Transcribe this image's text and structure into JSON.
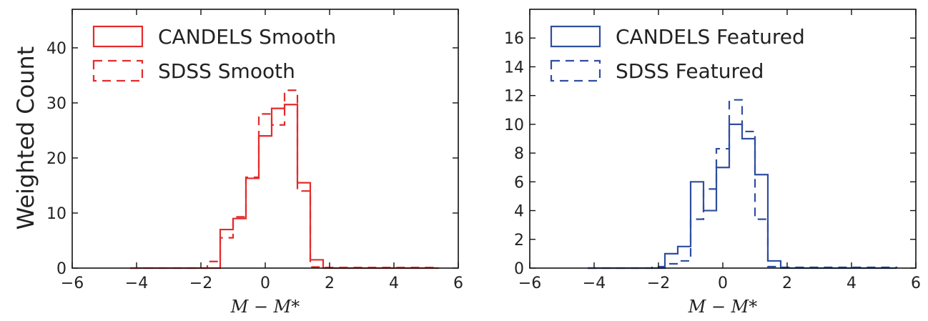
{
  "figure": {
    "ylabel": "Weighted Count"
  },
  "chart_data": [
    {
      "type": "histogram",
      "xlabel": "M − M*",
      "xlim": [
        -6,
        6
      ],
      "ylim": [
        0,
        47
      ],
      "x_ticks": [
        -6,
        -4,
        -2,
        0,
        2,
        4,
        6
      ],
      "y_ticks": [
        0,
        10,
        20,
        30,
        40
      ],
      "legend_position": "top-left",
      "bin_edges": [
        -4.2,
        -3.8,
        -3.4,
        -3.0,
        -2.6,
        -2.2,
        -1.8,
        -1.4,
        -1.0,
        -0.6,
        -0.2,
        0.2,
        0.6,
        1.0,
        1.4,
        1.8,
        2.2,
        2.6,
        3.0,
        3.4,
        3.8,
        4.2,
        4.6,
        5.0,
        5.4
      ],
      "series": [
        {
          "name": "CANDELS Smooth",
          "style": "solid",
          "color": "#e32b2b",
          "values": [
            0,
            0,
            0,
            0,
            0,
            0,
            0,
            7,
            9,
            16.3,
            24,
            29,
            29.7,
            15.5,
            1.5,
            0,
            0,
            0,
            0,
            0,
            0,
            0,
            0,
            0
          ]
        },
        {
          "name": "SDSS Smooth",
          "style": "dashed",
          "color": "#e32b2b",
          "values": [
            0,
            0,
            0,
            0,
            0,
            0,
            1.2,
            5.5,
            9.3,
            16.5,
            28,
            26,
            32.3,
            14,
            0.2,
            0.1,
            0.1,
            0.1,
            0.1,
            0.1,
            0.1,
            0.1,
            0.1,
            0.1
          ]
        }
      ]
    },
    {
      "type": "histogram",
      "xlabel": "M − M*",
      "xlim": [
        -6,
        6
      ],
      "ylim": [
        0,
        18
      ],
      "x_ticks": [
        -6,
        -4,
        -2,
        0,
        2,
        4,
        6
      ],
      "y_ticks": [
        0,
        2,
        4,
        6,
        8,
        10,
        12,
        14,
        16
      ],
      "legend_position": "top-left",
      "bin_edges": [
        -4.2,
        -3.8,
        -3.4,
        -3.0,
        -2.6,
        -2.2,
        -1.8,
        -1.4,
        -1.0,
        -0.6,
        -0.2,
        0.2,
        0.6,
        1.0,
        1.4,
        1.8,
        2.2,
        2.6,
        3.0,
        3.4,
        3.8,
        4.2,
        4.6,
        5.0,
        5.4
      ],
      "series": [
        {
          "name": "CANDELS Featured",
          "style": "solid",
          "color": "#2e4e9e",
          "values": [
            0,
            0,
            0,
            0,
            0,
            0,
            1,
            1.5,
            6,
            4,
            7,
            10,
            9,
            6.5,
            0.5,
            0,
            0,
            0,
            0,
            0,
            0,
            0,
            0,
            0
          ]
        },
        {
          "name": "SDSS Featured",
          "style": "dashed",
          "color": "#2e4e9e",
          "values": [
            0,
            0,
            0,
            0,
            0,
            0.1,
            0.3,
            0.5,
            3.4,
            5.5,
            8.3,
            11.7,
            9.5,
            3.4,
            0.1,
            0.05,
            0.05,
            0.05,
            0.05,
            0.05,
            0.05,
            0.05,
            0.05,
            0.05
          ]
        }
      ]
    }
  ]
}
